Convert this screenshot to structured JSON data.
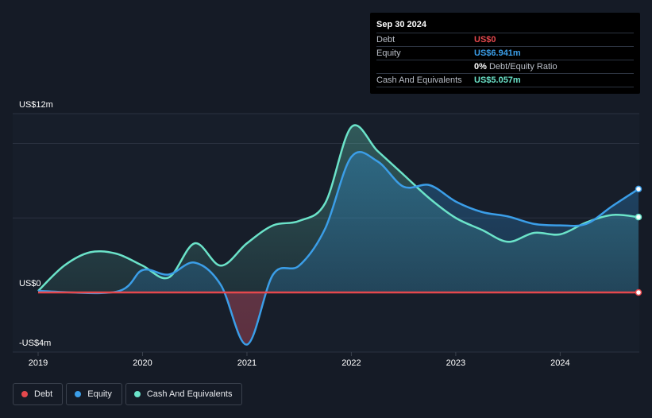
{
  "tooltip": {
    "date": "Sep 30 2024",
    "rows": [
      {
        "label": "Debt",
        "value": "US$0",
        "color": "#e5484d"
      },
      {
        "label": "Equity",
        "value": "US$6.941m",
        "color": "#3b9ee8"
      },
      {
        "label": "",
        "value": "0%",
        "suffix": "Debt/Equity Ratio",
        "color": "#ffffff"
      },
      {
        "label": "Cash And Equivalents",
        "value": "US$5.057m",
        "color": "#6be3c9"
      }
    ]
  },
  "legend": [
    {
      "label": "Debt",
      "color": "#e5484d"
    },
    {
      "label": "Equity",
      "color": "#3b9ee8"
    },
    {
      "label": "Cash And Equivalents",
      "color": "#6be3c9"
    }
  ],
  "chart_data": {
    "type": "area",
    "y_tick_labels": [
      "US$12m",
      "US$0",
      "-US$4m"
    ],
    "y_ticks": [
      12,
      0,
      -4
    ],
    "x_tick_labels": [
      "2019",
      "2020",
      "2021",
      "2022",
      "2023",
      "2024"
    ],
    "x_ticks": [
      2019,
      2020,
      2021,
      2022,
      2023,
      2024
    ],
    "xlim": [
      2019,
      2024.75
    ],
    "ylim": [
      -4,
      12
    ],
    "grid": true,
    "legend_position": "bottom-left",
    "series": [
      {
        "name": "Debt",
        "color": "#e5484d",
        "x": [
          2019,
          2024.75
        ],
        "values": [
          0,
          0
        ]
      },
      {
        "name": "Equity",
        "color": "#3b9ee8",
        "x": [
          2019.0,
          2019.75,
          2020.0,
          2020.25,
          2020.5,
          2020.75,
          2021.0,
          2021.25,
          2021.5,
          2021.75,
          2022.0,
          2022.25,
          2022.5,
          2022.75,
          2023.0,
          2023.25,
          2023.5,
          2023.75,
          2024.0,
          2024.25,
          2024.5,
          2024.75
        ],
        "values": [
          0.1,
          0.05,
          1.5,
          1.2,
          2.0,
          0.5,
          -3.5,
          1.2,
          1.8,
          4.3,
          9.1,
          8.8,
          7.1,
          7.2,
          6.1,
          5.4,
          5.1,
          4.6,
          4.5,
          4.6,
          5.8,
          6.941
        ]
      },
      {
        "name": "Cash And Equivalents",
        "color": "#6be3c9",
        "x": [
          2019.0,
          2019.25,
          2019.5,
          2019.75,
          2020.0,
          2020.25,
          2020.5,
          2020.75,
          2021.0,
          2021.25,
          2021.5,
          2021.75,
          2022.0,
          2022.25,
          2022.5,
          2022.75,
          2023.0,
          2023.25,
          2023.5,
          2023.75,
          2024.0,
          2024.25,
          2024.5,
          2024.75
        ],
        "values": [
          0.1,
          1.8,
          2.7,
          2.6,
          1.8,
          1.0,
          3.3,
          1.8,
          3.3,
          4.5,
          4.8,
          6.0,
          11.1,
          9.5,
          7.9,
          6.3,
          5.0,
          4.2,
          3.4,
          4.0,
          3.9,
          4.7,
          5.2,
          5.057
        ]
      }
    ]
  }
}
